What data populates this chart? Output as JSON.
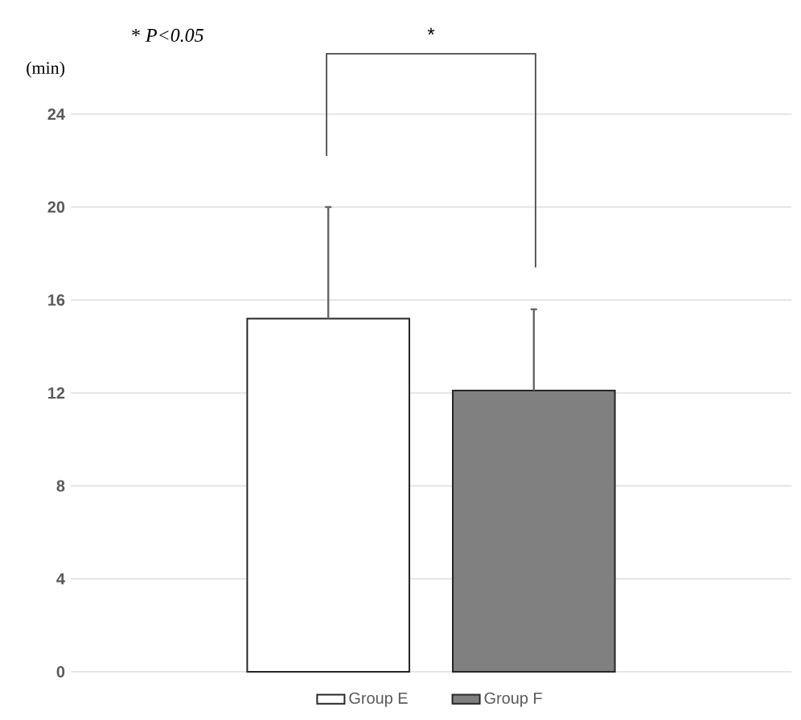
{
  "chart_data": {
    "type": "bar",
    "categories": [
      null
    ],
    "series": [
      {
        "name": "Group E",
        "color": "#ffffff",
        "values": [
          15.2
        ],
        "errors": [
          4.8
        ]
      },
      {
        "name": "Group F",
        "color": "#808080",
        "values": [
          12.1
        ],
        "errors": [
          3.5
        ]
      }
    ],
    "ylabel": "(min)",
    "ylim": [
      0,
      24
    ],
    "yticks": [
      0,
      4,
      8,
      12,
      16,
      20,
      24
    ],
    "grid": "y",
    "legend": "bottom",
    "annotations": [
      "* *P<0.05*",
      "*"
    ]
  }
}
